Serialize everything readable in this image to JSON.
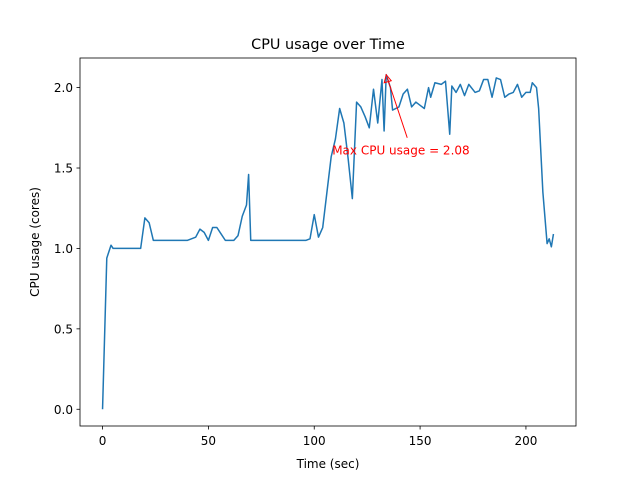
{
  "chart_data": {
    "type": "line",
    "title": "CPU usage over Time",
    "x_label": "Time (sec)",
    "y_label": "CPU usage (cores)",
    "x": [
      0,
      2,
      4,
      5,
      8,
      10,
      18,
      20,
      22,
      24,
      30,
      40,
      44,
      46,
      48,
      50,
      52,
      54,
      56,
      58,
      62,
      64,
      66,
      68,
      69,
      70,
      74,
      80,
      86,
      90,
      96,
      98,
      100,
      102,
      104,
      106,
      108,
      110,
      112,
      114,
      116,
      118,
      120,
      122,
      124,
      126,
      128,
      130,
      132,
      133,
      134,
      136,
      137,
      140,
      142,
      144,
      146,
      148,
      150,
      152,
      154,
      155,
      157,
      160,
      162,
      164,
      165,
      167,
      169,
      171,
      173,
      176,
      178,
      180,
      182,
      184,
      186,
      188,
      190,
      192,
      194,
      196,
      198,
      200,
      202,
      203,
      205,
      206,
      208,
      210,
      211,
      212,
      213
    ],
    "values": [
      0.0,
      0.94,
      1.02,
      1.0,
      1.0,
      1.0,
      1.0,
      1.19,
      1.16,
      1.05,
      1.05,
      1.05,
      1.07,
      1.12,
      1.1,
      1.05,
      1.13,
      1.13,
      1.09,
      1.05,
      1.05,
      1.08,
      1.2,
      1.27,
      1.46,
      1.05,
      1.05,
      1.05,
      1.05,
      1.05,
      1.05,
      1.06,
      1.21,
      1.07,
      1.13,
      1.35,
      1.57,
      1.68,
      1.87,
      1.78,
      1.56,
      1.31,
      1.91,
      1.88,
      1.82,
      1.75,
      1.99,
      1.78,
      2.05,
      1.73,
      2.08,
      2.0,
      1.86,
      1.88,
      1.96,
      1.99,
      1.88,
      1.91,
      1.89,
      1.87,
      2.0,
      1.94,
      2.03,
      2.02,
      2.04,
      1.71,
      2.01,
      1.97,
      2.02,
      1.95,
      2.02,
      1.97,
      1.98,
      2.05,
      2.05,
      1.94,
      2.06,
      2.05,
      1.94,
      1.96,
      1.97,
      2.02,
      1.94,
      1.97,
      1.97,
      2.03,
      2.0,
      1.87,
      1.35,
      1.03,
      1.06,
      1.01,
      1.09
    ],
    "color": "#1f77b4",
    "xlim": [
      -10.65,
      223.65
    ],
    "ylim": [
      -0.104,
      2.184
    ],
    "xticks": [
      0,
      50,
      100,
      150,
      200
    ],
    "yticks": [
      {
        "value": 0,
        "label": "0.0"
      },
      0.5,
      {
        "value": 1,
        "label": "1.0"
      },
      1.5,
      {
        "value": 2,
        "label": "2.0"
      }
    ],
    "annotation": {
      "text": "Max CPU usage = 2.08",
      "x": 134,
      "y": 2.08,
      "color": "red"
    }
  }
}
